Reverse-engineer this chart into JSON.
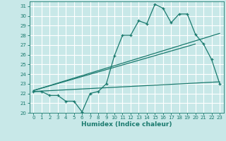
{
  "xlabel": "Humidex (Indice chaleur)",
  "ylabel": "",
  "background_color": "#c8e8e8",
  "grid_color": "#ffffff",
  "line_color": "#1a7a6e",
  "xlim": [
    -0.5,
    23.5
  ],
  "ylim": [
    20,
    31.5
  ],
  "yticks": [
    20,
    21,
    22,
    23,
    24,
    25,
    26,
    27,
    28,
    29,
    30,
    31
  ],
  "xticks": [
    0,
    1,
    2,
    3,
    4,
    5,
    6,
    7,
    8,
    9,
    10,
    11,
    12,
    13,
    14,
    15,
    16,
    17,
    18,
    19,
    20,
    21,
    22,
    23
  ],
  "line1_x": [
    0,
    1,
    2,
    3,
    4,
    5,
    6,
    7,
    8,
    9,
    10,
    11,
    12,
    13,
    14,
    15,
    16,
    17,
    18,
    19,
    20,
    21,
    22,
    23
  ],
  "line1_y": [
    22.2,
    22.2,
    21.8,
    21.8,
    21.2,
    21.2,
    20.1,
    22.0,
    22.2,
    23.0,
    25.9,
    28.0,
    28.0,
    29.5,
    29.2,
    31.2,
    30.8,
    29.3,
    30.2,
    30.2,
    28.1,
    27.1,
    25.5,
    23.0
  ],
  "line2_x": [
    0,
    23
  ],
  "line2_y": [
    22.3,
    28.2
  ],
  "line3_x": [
    0,
    23
  ],
  "line3_y": [
    22.2,
    23.2
  ],
  "line4_x": [
    0,
    20
  ],
  "line4_y": [
    22.3,
    27.1
  ]
}
